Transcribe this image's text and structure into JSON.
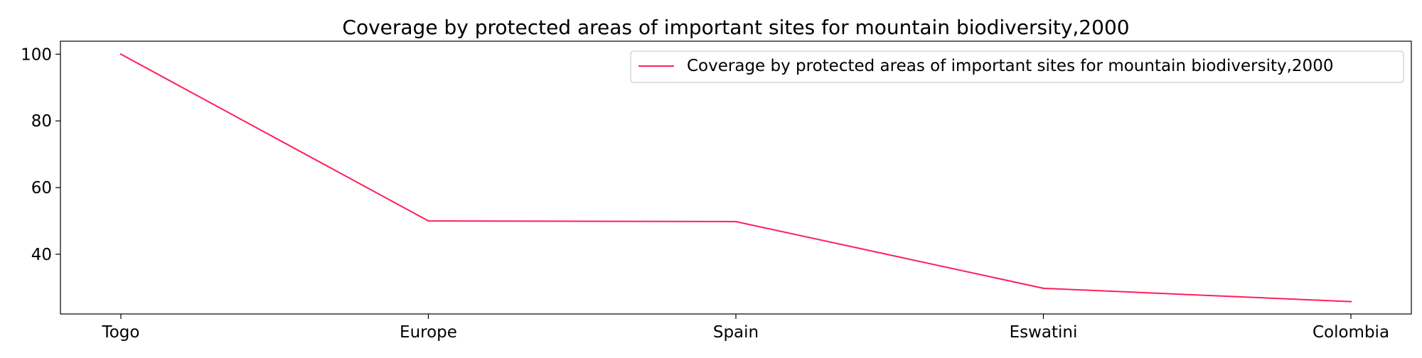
{
  "chart_data": {
    "type": "line",
    "title": "Coverage by protected areas of important sites for mountain biodiversity,2000",
    "xlabel": "",
    "ylabel": "",
    "categories": [
      "Togo",
      "Europe",
      "Spain",
      "Eswatini",
      "Colombia"
    ],
    "series": [
      {
        "name": "Coverage by protected areas of important sites for mountain biodiversity,2000",
        "values": [
          100,
          50,
          49.8,
          29.8,
          25.8
        ],
        "color": "#ff1f5b"
      }
    ],
    "ylim": [
      22.1,
      103.9
    ],
    "yticks": [
      40,
      60,
      80,
      100
    ],
    "grid": false,
    "legend_position": "top-right"
  }
}
